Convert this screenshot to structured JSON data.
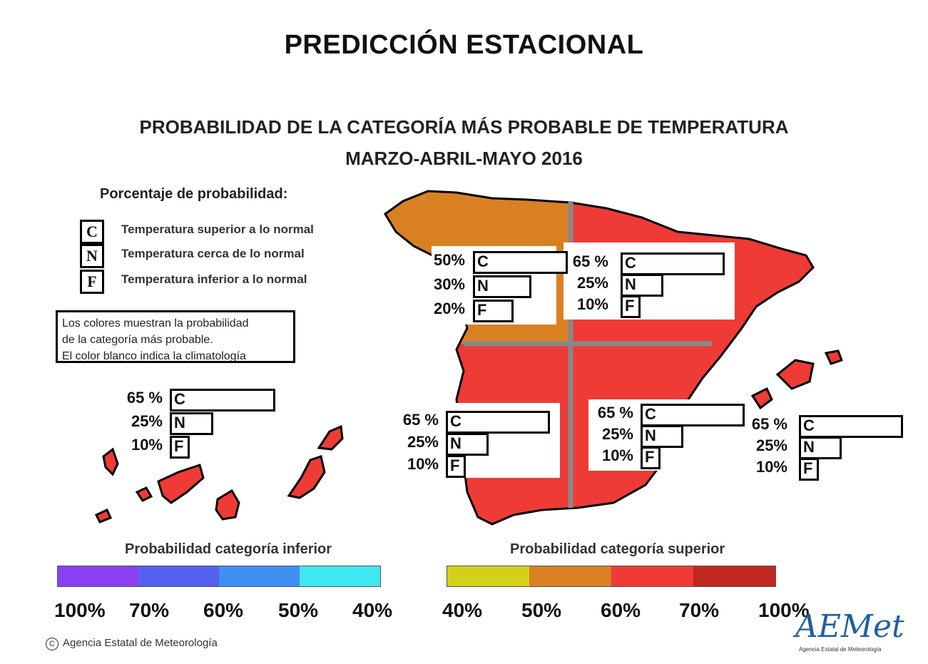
{
  "title": "PREDICCIÓN ESTACIONAL",
  "map": {
    "title": "PROBABILIDAD DE LA CATEGORÍA MÁS PROBABLE DE TEMPERATURA",
    "subtitle": "MARZO-ABRIL-MAYO 2016"
  },
  "legend": {
    "heading": "Porcentaje de probabilidad:",
    "categories": [
      {
        "letter": "C",
        "text": "Temperatura superior a lo normal"
      },
      {
        "letter": "N",
        "text": "Temperatura cerca de lo normal"
      },
      {
        "letter": "F",
        "text": "Temperatura inferior a lo normal"
      }
    ],
    "note": [
      "Los colores muestran la probabilidad",
      "de la categoría más probable.",
      "El color blanco indica la climatología"
    ]
  },
  "regions": [
    {
      "name": "canarias",
      "color": "#ee3b36",
      "rows": [
        {
          "pct": "65 %",
          "cat": "C",
          "value": 65
        },
        {
          "pct": "25%",
          "cat": "N",
          "value": 25
        },
        {
          "pct": "10%",
          "cat": "F",
          "value": 10
        }
      ]
    },
    {
      "name": "northwest",
      "color": "#d98122",
      "rows": [
        {
          "pct": "50%",
          "cat": "C",
          "value": 50
        },
        {
          "pct": "30%",
          "cat": "N",
          "value": 30
        },
        {
          "pct": "20%",
          "cat": "F",
          "value": 20
        }
      ]
    },
    {
      "name": "northeast",
      "color": "#ee3b36",
      "rows": [
        {
          "pct": "65 %",
          "cat": "C",
          "value": 65
        },
        {
          "pct": "25%",
          "cat": "N",
          "value": 25
        },
        {
          "pct": "10%",
          "cat": "F",
          "value": 10
        }
      ]
    },
    {
      "name": "southwest",
      "color": "#ee3b36",
      "rows": [
        {
          "pct": "65 %",
          "cat": "C",
          "value": 65
        },
        {
          "pct": "25%",
          "cat": "N",
          "value": 25
        },
        {
          "pct": "10%",
          "cat": "F",
          "value": 10
        }
      ]
    },
    {
      "name": "southeast",
      "color": "#ee3b36",
      "rows": [
        {
          "pct": "65 %",
          "cat": "C",
          "value": 65
        },
        {
          "pct": "25%",
          "cat": "N",
          "value": 25
        },
        {
          "pct": "10%",
          "cat": "F",
          "value": 10
        }
      ]
    },
    {
      "name": "baleares",
      "color": "#ee3b36",
      "rows": [
        {
          "pct": "65 %",
          "cat": "C",
          "value": 65
        },
        {
          "pct": "25%",
          "cat": "N",
          "value": 25
        },
        {
          "pct": "10%",
          "cat": "F",
          "value": 10
        }
      ]
    }
  ],
  "scales": {
    "inferior": {
      "heading": "Probabilidad categoría inferior",
      "colors": [
        "#8a3ff0",
        "#5660f0",
        "#3f8ff2",
        "#3fe8f0"
      ],
      "labels": [
        "100%",
        "70%",
        "60%",
        "50%",
        "40%"
      ]
    },
    "superior": {
      "heading": "Probabilidad categoría superior",
      "colors": [
        "#d4d11a",
        "#d98122",
        "#ee3b36",
        "#c02a22"
      ],
      "labels": [
        "40%",
        "50%",
        "60%",
        "70%",
        "100%"
      ]
    }
  },
  "credit": "Agencia Estatal de Meteorología",
  "credit_icon": "copyright-icon",
  "logo": {
    "text": "AEMet",
    "subtitle": "Agencia Estatal de Meteorología"
  }
}
